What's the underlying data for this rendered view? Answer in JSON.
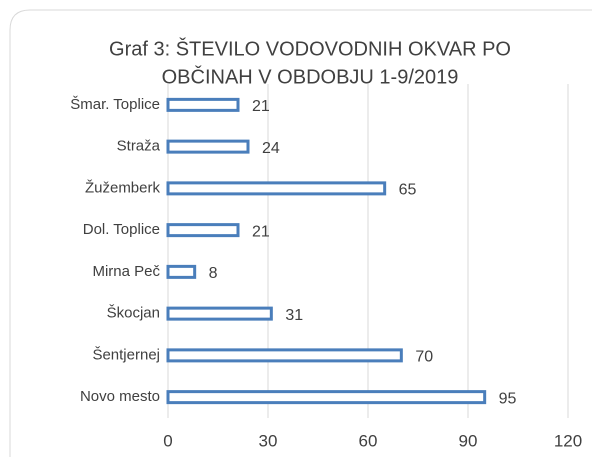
{
  "chart_data": {
    "type": "hbar",
    "title": [
      "Graf 3: ŠTEVILO VODOVODNIH OKVAR PO",
      "OBČINAH  V OBDOBJU 1-9/2019"
    ],
    "categories": [
      "Šmar. Toplice",
      "Straža",
      "Žužemberk",
      "Dol. Toplice",
      "Mirna Peč",
      "Škocjan",
      "Šentjernej",
      "Novo mesto"
    ],
    "values": [
      21,
      24,
      65,
      21,
      8,
      31,
      70,
      95
    ],
    "color": "#4a7ebb",
    "xlim": [
      0,
      120
    ],
    "xticks": [
      0,
      30,
      60,
      90,
      120
    ],
    "grid": true
  }
}
